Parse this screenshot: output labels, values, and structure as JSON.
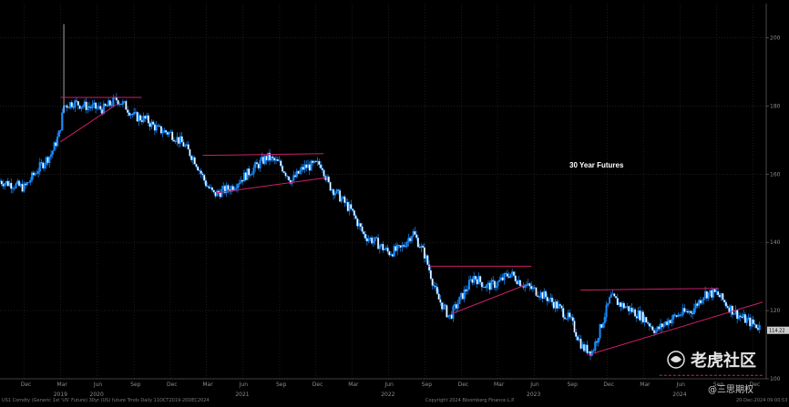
{
  "chart_data": {
    "type": "candlestick",
    "title": "30 Year Futures",
    "ylim": [
      100,
      210
    ],
    "y_ticks": [
      100,
      120,
      140,
      160,
      180,
      200
    ],
    "x_ticks": [
      {
        "label": "Dec",
        "date": "2019-12-01",
        "year": "2019"
      },
      {
        "label": "Mar",
        "date": "2020-03-01",
        "year": "2020"
      },
      {
        "label": "Jun",
        "date": "2020-06-01"
      },
      {
        "label": "Sep",
        "date": "2020-09-01"
      },
      {
        "label": "Dec",
        "date": "2020-12-01"
      },
      {
        "label": "Mar",
        "date": "2021-03-01",
        "year": "2021"
      },
      {
        "label": "Jun",
        "date": "2021-06-01"
      },
      {
        "label": "Sep",
        "date": "2021-09-01"
      },
      {
        "label": "Dec",
        "date": "2021-12-01"
      },
      {
        "label": "Mar",
        "date": "2022-03-01",
        "year": "2022"
      },
      {
        "label": "Jun",
        "date": "2022-06-01"
      },
      {
        "label": "Sep",
        "date": "2022-09-01"
      },
      {
        "label": "Dec",
        "date": "2022-12-01"
      },
      {
        "label": "Mar",
        "date": "2023-03-01",
        "year": "2023"
      },
      {
        "label": "Jun",
        "date": "2023-06-01"
      },
      {
        "label": "Sep",
        "date": "2023-09-01"
      },
      {
        "label": "Dec",
        "date": "2023-12-01"
      },
      {
        "label": "Mar",
        "date": "2024-03-01",
        "year": "2024"
      },
      {
        "label": "Jun",
        "date": "2024-06-01"
      },
      {
        "label": "Sep",
        "date": "2024-09-01"
      },
      {
        "label": "Dec",
        "date": "2024-12-01"
      }
    ],
    "date_range": [
      "2019-10-01",
      "2024-12-20"
    ],
    "series": [
      {
        "values": [
          [
            "2019-10-01",
            158
          ],
          [
            "2019-11-01",
            157
          ],
          [
            "2019-12-01",
            156
          ],
          [
            "2020-01-01",
            161
          ],
          [
            "2020-02-07",
            166
          ],
          [
            "2020-02-27",
            172
          ],
          [
            "2020-03-09",
            180
          ],
          [
            "2020-04-01",
            181
          ],
          [
            "2020-05-01",
            180
          ],
          [
            "2020-06-15",
            179
          ],
          [
            "2020-07-20",
            182
          ],
          [
            "2020-08-10",
            180
          ],
          [
            "2020-09-01",
            177
          ],
          [
            "2020-10-01",
            176
          ],
          [
            "2020-11-01",
            173
          ],
          [
            "2020-12-01",
            172
          ],
          [
            "2021-01-01",
            169
          ],
          [
            "2021-02-01",
            164
          ],
          [
            "2021-03-01",
            157
          ],
          [
            "2021-03-20",
            154
          ],
          [
            "2021-05-01",
            156
          ],
          [
            "2021-07-01",
            162
          ],
          [
            "2021-08-01",
            165
          ],
          [
            "2021-09-01",
            163
          ],
          [
            "2021-10-01",
            158
          ],
          [
            "2021-11-01",
            162
          ],
          [
            "2021-12-15",
            163
          ],
          [
            "2022-01-01",
            157
          ],
          [
            "2022-02-01",
            153
          ],
          [
            "2022-03-01",
            149
          ],
          [
            "2022-04-01",
            142
          ],
          [
            "2022-05-01",
            140
          ],
          [
            "2022-06-01",
            137
          ],
          [
            "2022-07-01",
            138
          ],
          [
            "2022-08-01",
            143
          ],
          [
            "2022-09-01",
            136
          ],
          [
            "2022-10-01",
            124
          ],
          [
            "2022-11-01",
            118
          ],
          [
            "2022-12-01",
            124
          ],
          [
            "2023-01-01",
            130
          ],
          [
            "2023-02-01",
            127
          ],
          [
            "2023-03-01",
            128
          ],
          [
            "2023-04-01",
            131
          ],
          [
            "2023-05-01",
            128
          ],
          [
            "2023-06-01",
            126
          ],
          [
            "2023-07-01",
            124
          ],
          [
            "2023-08-01",
            121
          ],
          [
            "2023-09-01",
            117
          ],
          [
            "2023-10-01",
            109
          ],
          [
            "2023-10-25",
            108
          ],
          [
            "2023-11-20",
            117
          ],
          [
            "2023-12-10",
            124
          ],
          [
            "2024-01-01",
            122
          ],
          [
            "2024-02-01",
            120
          ],
          [
            "2024-03-01",
            118
          ],
          [
            "2024-04-01",
            114
          ],
          [
            "2024-05-01",
            117
          ],
          [
            "2024-06-01",
            119
          ],
          [
            "2024-07-01",
            120
          ],
          [
            "2024-08-01",
            125
          ],
          [
            "2024-09-01",
            125
          ],
          [
            "2024-10-01",
            121
          ],
          [
            "2024-11-01",
            118
          ],
          [
            "2024-12-01",
            116
          ],
          [
            "2024-12-20",
            115
          ]
        ]
      }
    ],
    "trendlines": [
      {
        "from": [
          "2020-03-01",
          182.5
        ],
        "to": [
          "2020-09-20",
          182.5
        ]
      },
      {
        "from": [
          "2020-03-01",
          169.5
        ],
        "to": [
          "2020-07-20",
          180.5
        ]
      },
      {
        "from": [
          "2021-02-20",
          165.5
        ],
        "to": [
          "2021-12-20",
          166.0
        ]
      },
      {
        "from": [
          "2021-03-25",
          154.5
        ],
        "to": [
          "2021-12-30",
          159.0
        ]
      },
      {
        "from": [
          "2022-09-10",
          133.0
        ],
        "to": [
          "2023-05-25",
          133.0
        ]
      },
      {
        "from": [
          "2022-11-05",
          119.0
        ],
        "to": [
          "2023-05-10",
          127.5
        ]
      },
      {
        "from": [
          "2023-09-25",
          126.0
        ],
        "to": [
          "2024-09-05",
          126.5
        ]
      },
      {
        "from": [
          "2023-10-15",
          107.0
        ],
        "to": [
          "2024-12-25",
          122.5
        ]
      }
    ],
    "dashed_line": {
      "y": 101,
      "from": "2024-04-10",
      "to": "2024-12-25"
    },
    "last_price_label": "114.22",
    "last_price": 114.22
  },
  "footer": {
    "left": "US1 Comdty (Generic 1st 'US' Future) 30yr (US) future Trnds  Daily 11OCT2019-20DEC2024",
    "center": "Copyright 2024 Bloomberg Finance L.P.",
    "right": "20-Dec-2024 09:00:53"
  },
  "watermark": {
    "brand": "老虎社区",
    "handle": "@三思期权"
  },
  "colors": {
    "candle": "#1a8cff",
    "trend": "#cc1f6a",
    "last_price_bg": "#cccccc"
  }
}
